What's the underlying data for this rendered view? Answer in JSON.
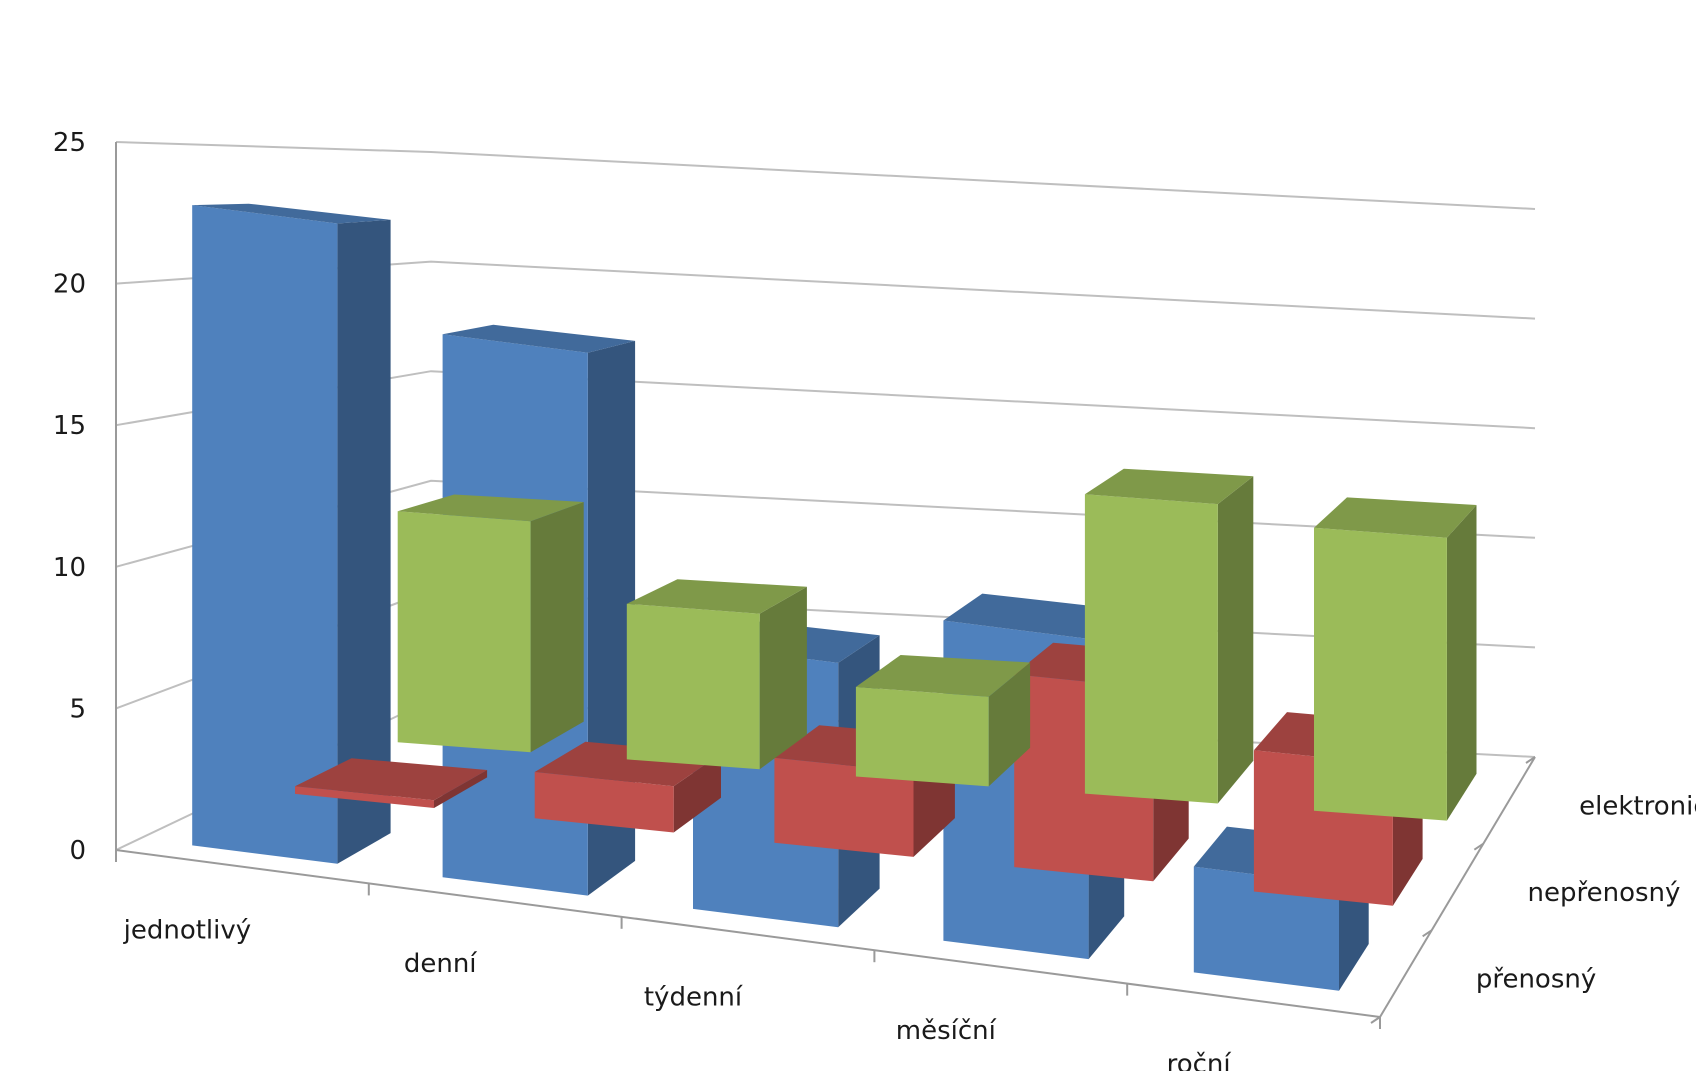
{
  "chart_data": {
    "type": "bar",
    "variant": "3d-column",
    "title": "",
    "xlabel": "",
    "ylabel": "",
    "ylim": [
      0,
      25
    ],
    "y_ticks": [
      "0",
      "5",
      "10",
      "15",
      "20",
      "25"
    ],
    "grid": true,
    "categories": [
      "jednotlivý",
      "denní",
      "týdenní",
      "měsíční",
      "roční"
    ],
    "series": [
      {
        "name": "přenosný",
        "color": "#4F81BD",
        "values": [
          23,
          19.5,
          9.5,
          11.5,
          3.8
        ]
      },
      {
        "name": "nepřenosný",
        "color": "#C0504D",
        "values": [
          0.3,
          1.8,
          3.3,
          7.5,
          5.5
        ]
      },
      {
        "name": "elektronický",
        "color": "#9BBB59",
        "values": [
          9.8,
          6.6,
          3.8,
          12.7,
          12.0
        ]
      }
    ]
  }
}
